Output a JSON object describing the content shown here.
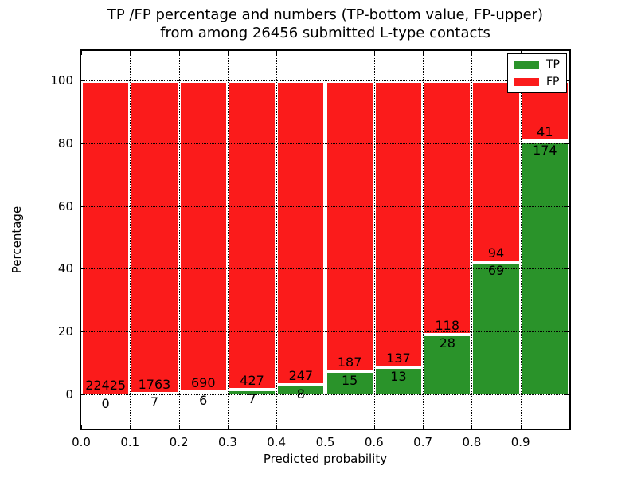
{
  "title": {
    "line1": "TP /FP percentage and numbers (TP-bottom value, FP-upper)",
    "line2": "from among 26456 submitted L-type contacts"
  },
  "x_axis": {
    "label": "Predicted probability",
    "tick_labels": [
      "0.0",
      "0.1",
      "0.2",
      "0.3",
      "0.4",
      "0.5",
      "0.6",
      "0.7",
      "0.8",
      "0.9"
    ]
  },
  "y_axis": {
    "label": "Percentage",
    "ticks": [
      0,
      20,
      40,
      60,
      80,
      100
    ]
  },
  "legend": {
    "items": [
      {
        "label": "TP",
        "color_key": "tp"
      },
      {
        "label": "FP",
        "color_key": "fp"
      }
    ]
  },
  "colors": {
    "tp": "#2a932a",
    "fp": "#fb1b1b",
    "bar_edge": "#ffffff",
    "grid": "#000000"
  },
  "chart_data": {
    "type": "bar",
    "stacked": true,
    "normalized_to_percent": true,
    "title": "TP /FP percentage and numbers (TP-bottom value, FP-upper) from among 26456 submitted L-type contacts",
    "xlabel": "Predicted probability",
    "ylabel": "Percentage",
    "xlim": [
      0.0,
      1.0
    ],
    "ylim": [
      -10.8,
      109.7
    ],
    "bin_width": 0.1,
    "bin_starts": [
      0.0,
      0.1,
      0.2,
      0.3,
      0.4,
      0.5,
      0.6,
      0.7,
      0.8,
      0.9
    ],
    "series": [
      {
        "name": "TP",
        "color_key": "tp",
        "counts": [
          0,
          7,
          6,
          7,
          8,
          15,
          13,
          28,
          69,
          174
        ]
      },
      {
        "name": "FP",
        "color_key": "fp",
        "counts": [
          22425,
          1763,
          690,
          427,
          247,
          187,
          137,
          118,
          94,
          41
        ]
      }
    ],
    "tp_percent_of_bin": [
      0.0,
      0.4,
      0.86,
      1.61,
      3.14,
      7.43,
      8.67,
      19.18,
      42.33,
      80.93
    ],
    "total_submitted": 26456,
    "grid_style": "dotted",
    "legend_position": "upper right"
  }
}
